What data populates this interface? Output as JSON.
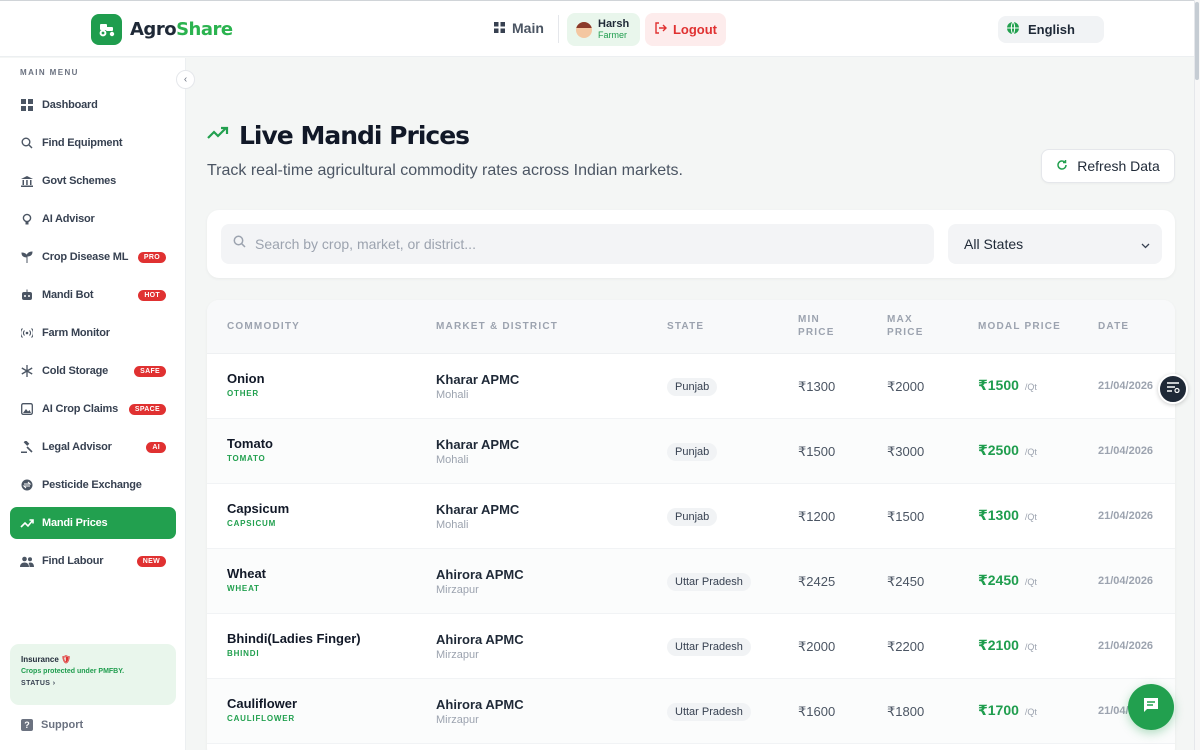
{
  "brand": {
    "name_part1": "Agro",
    "name_part2": "Share"
  },
  "header": {
    "main_label": "Main",
    "user_name": "Harsh",
    "user_role": "Farmer",
    "logout_label": "Logout",
    "language": "English"
  },
  "sidebar": {
    "menu_title": "MAIN MENU",
    "items": [
      {
        "label": "Dashboard",
        "icon": "grid-icon",
        "badge": ""
      },
      {
        "label": "Find Equipment",
        "icon": "search-icon",
        "badge": ""
      },
      {
        "label": "Govt Schemes",
        "icon": "bank-icon",
        "badge": ""
      },
      {
        "label": "AI Advisor",
        "icon": "bulb-icon",
        "badge": ""
      },
      {
        "label": "Crop Disease ML",
        "icon": "sprout-icon",
        "badge": "PRO"
      },
      {
        "label": "Mandi Bot",
        "icon": "bot-icon",
        "badge": "HOT"
      },
      {
        "label": "Farm Monitor",
        "icon": "signal-icon",
        "badge": ""
      },
      {
        "label": "Cold Storage",
        "icon": "snowflake-icon",
        "badge": "SAFE"
      },
      {
        "label": "AI Crop Claims",
        "icon": "image-icon",
        "badge": "SPACE"
      },
      {
        "label": "Legal Advisor",
        "icon": "gavel-icon",
        "badge": "AI"
      },
      {
        "label": "Pesticide Exchange",
        "icon": "exchange-icon",
        "badge": ""
      },
      {
        "label": "Mandi Prices",
        "icon": "trending-up-icon",
        "badge": ""
      },
      {
        "label": "Find Labour",
        "icon": "people-icon",
        "badge": "NEW"
      }
    ],
    "active_item": "Mandi Prices",
    "insurance": {
      "title": "Insurance",
      "subtitle": "Crops protected under PMFBY.",
      "status": "STATUS"
    },
    "support_label": "Support"
  },
  "page": {
    "title": "Live Mandi Prices",
    "subtitle": "Track real-time agricultural commodity rates across Indian markets.",
    "refresh_label": "Refresh Data"
  },
  "filters": {
    "search_placeholder": "Search by crop, market, or district...",
    "search_value": "",
    "state_selected": "All States"
  },
  "table": {
    "columns": [
      {
        "label": "COMMODITY"
      },
      {
        "label": "MARKET & DISTRICT"
      },
      {
        "label": "STATE"
      },
      {
        "label": "MIN\nPRICE"
      },
      {
        "label": "MAX\nPRICE"
      },
      {
        "label": "MODAL PRICE"
      },
      {
        "label": "DATE"
      }
    ],
    "unit": "/Qt",
    "rows": [
      {
        "commodity": "Onion",
        "variety": "OTHER",
        "market": "Kharar APMC",
        "district": "Mohali",
        "state": "Punjab",
        "min": "₹1300",
        "max": "₹2000",
        "modal": "₹1500",
        "date": "21/04/2026"
      },
      {
        "commodity": "Tomato",
        "variety": "TOMATO",
        "market": "Kharar APMC",
        "district": "Mohali",
        "state": "Punjab",
        "min": "₹1500",
        "max": "₹3000",
        "modal": "₹2500",
        "date": "21/04/2026"
      },
      {
        "commodity": "Capsicum",
        "variety": "CAPSICUM",
        "market": "Kharar APMC",
        "district": "Mohali",
        "state": "Punjab",
        "min": "₹1200",
        "max": "₹1500",
        "modal": "₹1300",
        "date": "21/04/2026"
      },
      {
        "commodity": "Wheat",
        "variety": "WHEAT",
        "market": "Ahirora APMC",
        "district": "Mirzapur",
        "state": "Uttar Pradesh",
        "min": "₹2425",
        "max": "₹2450",
        "modal": "₹2450",
        "date": "21/04/2026"
      },
      {
        "commodity": "Bhindi(Ladies Finger)",
        "variety": "BHINDI",
        "market": "Ahirora APMC",
        "district": "Mirzapur",
        "state": "Uttar Pradesh",
        "min": "₹2000",
        "max": "₹2200",
        "modal": "₹2100",
        "date": "21/04/2026"
      },
      {
        "commodity": "Cauliflower",
        "variety": "CAULIFLOWER",
        "market": "Ahirora APMC",
        "district": "Mirzapur",
        "state": "Uttar Pradesh",
        "min": "₹1600",
        "max": "₹1800",
        "modal": "₹1700",
        "date": "21/04/2026"
      }
    ]
  },
  "colors": {
    "brand_green": "#22a04f",
    "logout_red": "#e03131",
    "badge_red": "#e03131"
  }
}
